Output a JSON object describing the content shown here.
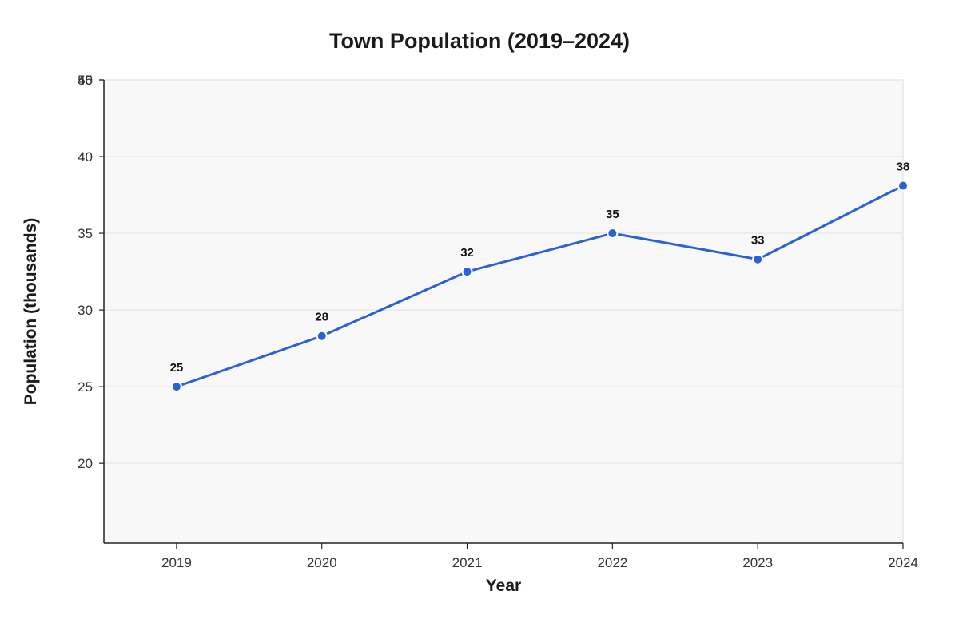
{
  "chart_data": {
    "type": "line",
    "title": "Town Population (2019–2024)",
    "xlabel": "Year",
    "ylabel": "Population (thousands)",
    "x": [
      2019,
      2020,
      2021,
      2022,
      2023,
      2024
    ],
    "x_tick_labels": [
      "2019",
      "2020",
      "2021",
      "2022",
      "2023",
      "2024"
    ],
    "xlim": [
      2018.5,
      2024
    ],
    "y_ticks": [
      20,
      25,
      30,
      35,
      40,
      45,
      50
    ],
    "y_tick_labels": [
      "20",
      "25",
      "30",
      "35",
      "40",
      "45",
      "50"
    ],
    "ylim": [
      14.8,
      45
    ],
    "series": [
      {
        "values": [
          25,
          28.3,
          32.5,
          35,
          33.3,
          38.1
        ],
        "data_labels": [
          "25",
          "28",
          "32",
          "35",
          "33",
          "38"
        ],
        "color": "#2b62d3"
      }
    ],
    "grid": true,
    "plot_background": "#f8f8f8"
  }
}
